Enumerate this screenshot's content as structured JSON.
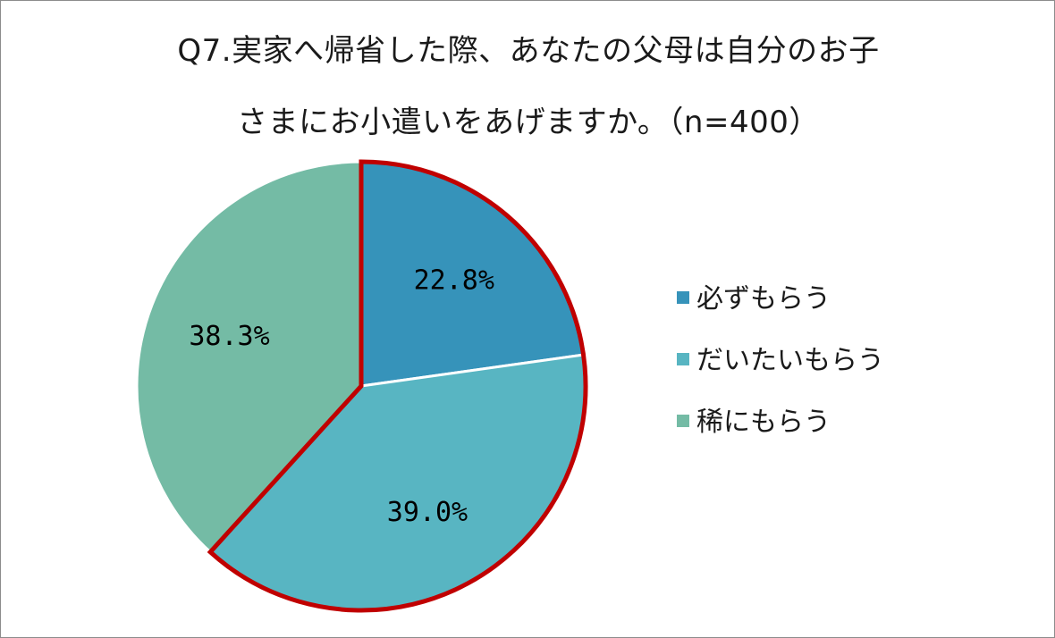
{
  "chart_data": {
    "type": "pie",
    "title_lines": [
      "Q7.実家へ帰省した際、あなたの父母は自分のお子",
      "さまにお小遣いをあげますか。（n=400）"
    ],
    "categories": [
      "必ずもらう",
      "だいたいもらう",
      "稀にもらう"
    ],
    "values": [
      22.8,
      39.0,
      38.3
    ],
    "labels": [
      "22.8%",
      "39.0%",
      "38.3%"
    ],
    "colors": [
      "#3693BA",
      "#58B5C2",
      "#74BBA5"
    ],
    "highlight_color": "#C00000",
    "highlighted_categories": [
      "必ずもらう",
      "だいたいもらう"
    ],
    "legend_position": "right"
  }
}
